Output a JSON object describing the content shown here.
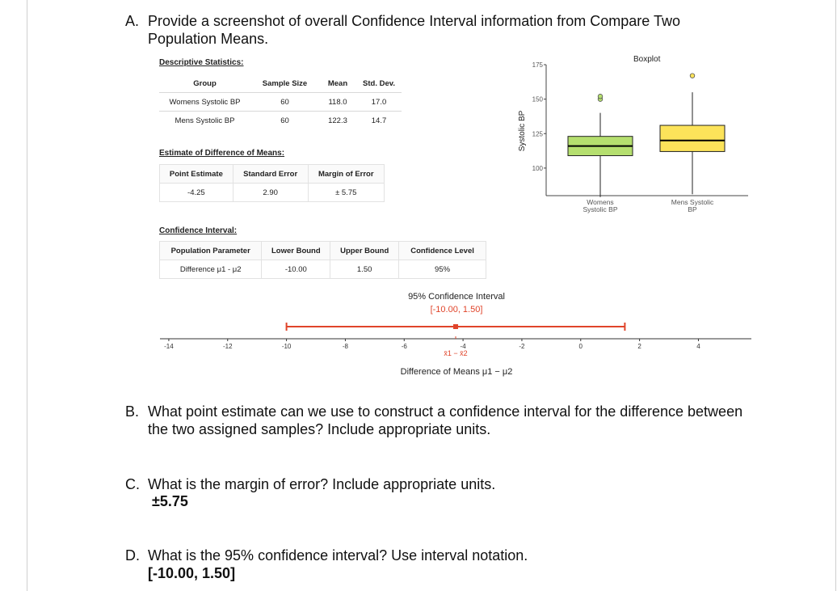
{
  "questions": {
    "a": {
      "letter": "A.",
      "line1": "Provide a screenshot of overall Confidence Interval information from Compare Two",
      "line2": "Population Means."
    },
    "b": {
      "letter": "B.",
      "line1": "What point estimate can we use to construct a confidence interval for the difference between",
      "line2": "the two assigned samples? Include appropriate units."
    },
    "c": {
      "letter": "C.",
      "line1": "What is the margin of error? Include appropriate units.",
      "answer": "±5.75"
    },
    "d": {
      "letter": "D.",
      "line1": "What is the 95% confidence interval? Use interval notation.",
      "answer": "[-10.00, 1.50]"
    }
  },
  "descriptive": {
    "title": "Descriptive Statistics:",
    "headers": [
      "Group",
      "Sample Size",
      "Mean",
      "Std. Dev."
    ],
    "rows": [
      [
        "Womens Systolic BP",
        "60",
        "118.0",
        "17.0"
      ],
      [
        "Mens Systolic BP",
        "60",
        "122.3",
        "14.7"
      ]
    ]
  },
  "difference": {
    "title": "Estimate of Difference of Means:",
    "headers": [
      "Point Estimate",
      "Standard Error",
      "Margin of Error"
    ],
    "values": [
      "-4.25",
      "2.90",
      "± 5.75"
    ]
  },
  "ci": {
    "title": "Confidence Interval:",
    "headers": [
      "Population Parameter",
      "Lower Bound",
      "Upper Bound",
      "Confidence Level"
    ],
    "values": [
      "Difference μ1 - μ2",
      "-10.00",
      "1.50",
      "95%"
    ]
  },
  "chart_data": [
    {
      "type": "boxplot",
      "title": "Boxplot",
      "ylabel": "Systolic BP",
      "ylim": [
        80,
        175
      ],
      "yticks": [
        "100",
        "125",
        "150",
        "175"
      ],
      "categories": [
        "Womens Systolic BP",
        "Mens Systolic BP"
      ],
      "labels": [
        [
          "Womens",
          "Systolic BP"
        ],
        [
          "Mens Systolic",
          "BP"
        ]
      ],
      "colors": [
        "#b5df6f",
        "#fce35a"
      ],
      "boxes": [
        {
          "whisker_low": 79,
          "q1": 109,
          "median": 116,
          "q3": 123,
          "whisker_high": 140,
          "outliers": [
            150,
            152
          ]
        },
        {
          "whisker_low": 81,
          "q1": 112,
          "median": 120,
          "q3": 131,
          "whisker_high": 155,
          "outliers": [
            167
          ]
        }
      ]
    },
    {
      "type": "interval",
      "title": "95% Confidence Interval",
      "subtitle": "[-10.00, 1.50]",
      "xlabel": "Difference of Means μ1 − μ2",
      "xlim": [
        -14.3,
        5.8
      ],
      "xticks": [
        "-14",
        "-12",
        "-10",
        "-8",
        "-6",
        "-4",
        "-2",
        "0",
        "2",
        "4"
      ],
      "lower": -10.0,
      "upper": 1.5,
      "point": -4.25,
      "point_label": "x̄1 − x̄2",
      "color": "#e0442a"
    }
  ]
}
